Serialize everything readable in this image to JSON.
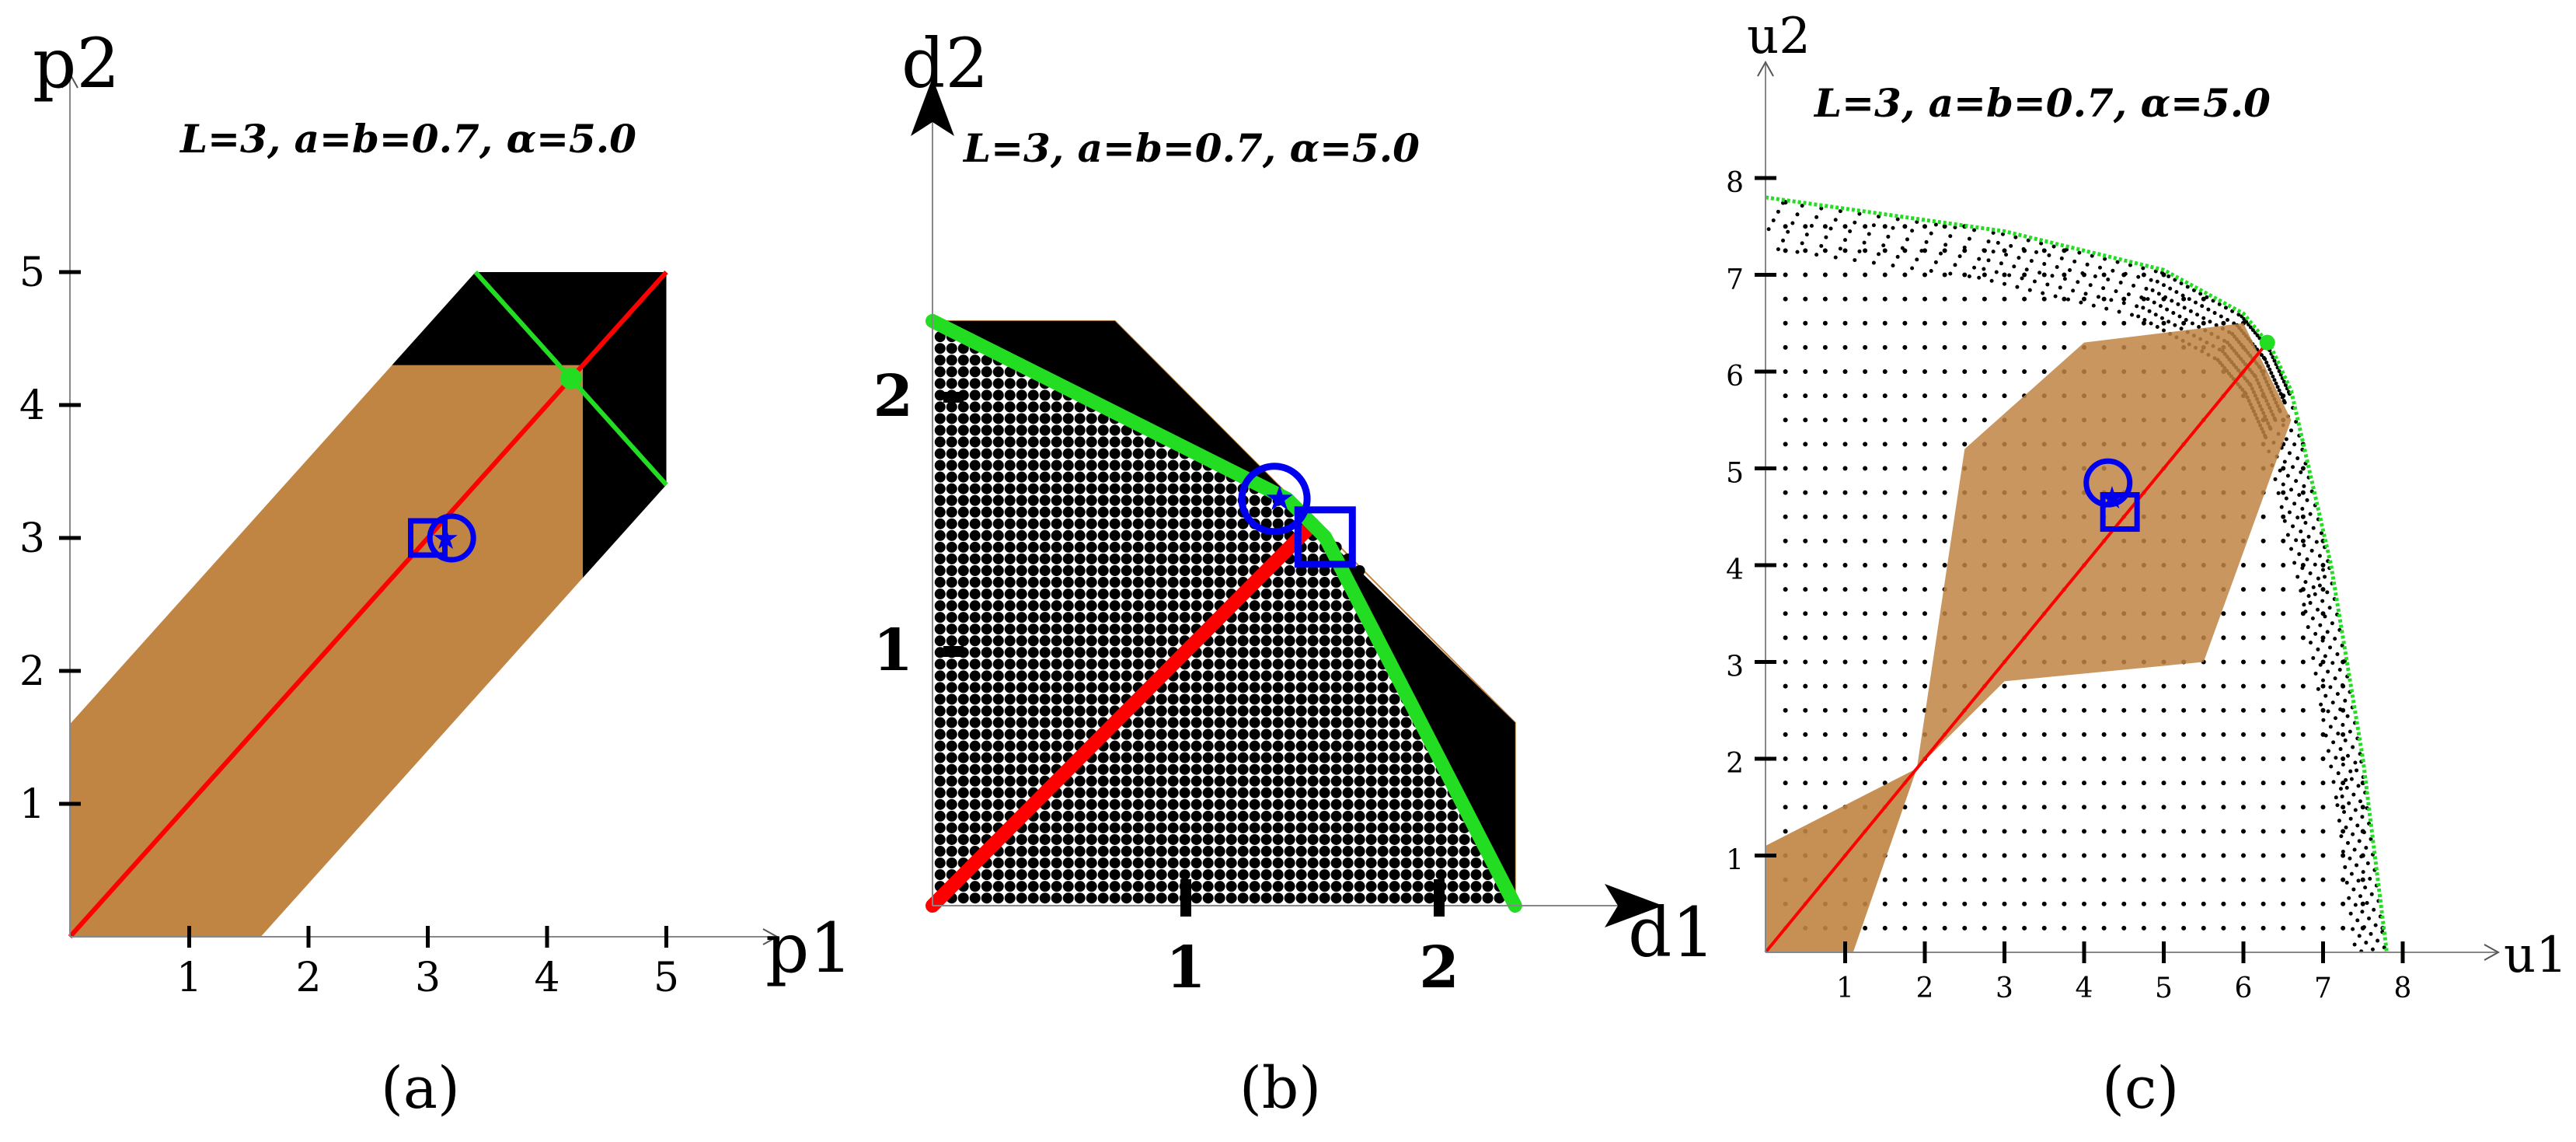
{
  "chart_data": [
    {
      "id": "a",
      "type": "scatter",
      "caption": "(a)",
      "annotation": "L=3, a=b=0.7, α=5.0",
      "xlabel": "p1",
      "ylabel": "p2",
      "xlim": [
        0,
        5.4
      ],
      "ylim": [
        0,
        5.8
      ],
      "xticks": [
        1,
        2,
        3,
        4,
        5
      ],
      "yticks": [
        1,
        2,
        3,
        4,
        5
      ],
      "colors": {
        "region_brown": "#c08443",
        "region_black": "#000000",
        "diag": "#ff0000",
        "frontier": "#22dd22",
        "marker": "#0000ee"
      },
      "region_brown": [
        [
          0,
          0
        ],
        [
          1.6,
          0
        ],
        [
          4.3,
          2.7
        ],
        [
          4.3,
          4.3
        ],
        [
          2.7,
          4.3
        ],
        [
          0,
          1.6
        ]
      ],
      "region_black": [
        [
          2.7,
          4.3
        ],
        [
          3.4,
          5.0
        ],
        [
          5.0,
          5.0
        ],
        [
          5.0,
          3.4
        ],
        [
          4.3,
          2.7
        ],
        [
          4.3,
          4.3
        ]
      ],
      "diagonal": [
        [
          0,
          0
        ],
        [
          5,
          5
        ]
      ],
      "frontier_line": [
        [
          3.4,
          5.0
        ],
        [
          5.0,
          3.4
        ]
      ],
      "green_point": [
        4.2,
        4.2
      ],
      "square_marker": [
        3.0,
        3.0
      ],
      "circle_marker": [
        3.2,
        3.0
      ],
      "star_marker": [
        3.15,
        3.0
      ]
    },
    {
      "id": "b",
      "type": "scatter",
      "caption": "(b)",
      "annotation": "L=3, a=b=0.7, α=5.0",
      "xlabel": "d1",
      "ylabel": "d2",
      "xlim": [
        0,
        2.6
      ],
      "ylim": [
        0,
        2.55
      ],
      "xticks": [
        1,
        2
      ],
      "yticks": [
        1,
        2
      ],
      "colors": {
        "region_black": "#000000",
        "diag": "#ff0000",
        "frontier": "#22dd22",
        "marker": "#0000ee"
      },
      "region_black": [
        [
          0,
          2.3
        ],
        [
          0.72,
          2.3
        ],
        [
          2.3,
          0.72
        ],
        [
          2.3,
          0
        ],
        [
          0,
          0
        ]
      ],
      "diagonal": [
        [
          0,
          0
        ],
        [
          1.5,
          1.5
        ]
      ],
      "frontier_line": [
        [
          0,
          2.3
        ],
        [
          1.4,
          1.6
        ],
        [
          1.55,
          1.45
        ],
        [
          2.3,
          0
        ]
      ],
      "square_marker": [
        1.55,
        1.45
      ],
      "circle_marker": [
        1.35,
        1.6
      ],
      "star_marker": [
        1.37,
        1.6
      ]
    },
    {
      "id": "c",
      "type": "scatter",
      "caption": "(c)",
      "annotation": "L=3, a=b=0.7, α=5.0",
      "xlabel": "u1",
      "ylabel": "u2",
      "xlim": [
        0,
        8.6
      ],
      "ylim": [
        0,
        8.5
      ],
      "xticks": [
        1,
        2,
        3,
        4,
        5,
        6,
        7,
        8
      ],
      "yticks": [
        1,
        2,
        3,
        4,
        5,
        6,
        7,
        8
      ],
      "colors": {
        "region_brown": "#c08443",
        "dots": "#000000",
        "diag": "#ff0000",
        "frontier": "#22dd22",
        "marker": "#0000ee"
      },
      "region_brown_lower": [
        [
          0,
          0
        ],
        [
          0,
          1.1
        ],
        [
          1.9,
          1.9
        ],
        [
          1.1,
          0
        ]
      ],
      "region_brown_upper": [
        [
          1.9,
          1.9
        ],
        [
          2.5,
          5.2
        ],
        [
          4.0,
          6.3
        ],
        [
          6.0,
          6.5
        ],
        [
          6.6,
          5.5
        ],
        [
          5.5,
          3.0
        ],
        [
          3.0,
          2.8
        ]
      ],
      "diagonal": [
        [
          0,
          0
        ],
        [
          6.3,
          6.3
        ]
      ],
      "frontier_line": [
        [
          0,
          7.8
        ],
        [
          3.0,
          7.45
        ],
        [
          5.0,
          7.05
        ],
        [
          6.0,
          6.6
        ],
        [
          6.35,
          6.25
        ],
        [
          6.6,
          5.8
        ],
        [
          7.1,
          4.0
        ],
        [
          7.5,
          2.0
        ],
        [
          7.8,
          0
        ]
      ],
      "green_point": [
        6.3,
        6.3
      ],
      "square_marker": [
        4.45,
        4.55
      ],
      "circle_marker": [
        4.3,
        4.85
      ],
      "star_marker": [
        4.35,
        4.7
      ]
    }
  ]
}
